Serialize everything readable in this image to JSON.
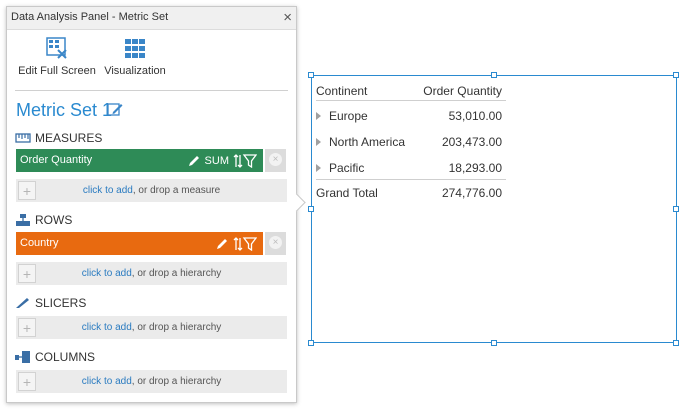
{
  "panel": {
    "title": "Data Analysis Panel - Metric Set",
    "close_glyph": "×",
    "toolbar": {
      "edit_full_screen": "Edit Full Screen",
      "visualization": "Visualization"
    },
    "metric_set_title": "Metric Set 1",
    "sections": {
      "measures": "MEASURES",
      "rows": "ROWS",
      "slicers": "SLICERS",
      "columns": "COLUMNS"
    },
    "measure_chip": {
      "label": "Order Quantity",
      "aggregate": "SUM",
      "color": "#2e8b57"
    },
    "row_chip": {
      "label": "Country",
      "color": "#e86a10"
    },
    "drop_zones": {
      "measure": {
        "link": "click to add",
        "text": ", or drop a measure"
      },
      "rows": {
        "link": "click to add",
        "text": ", or drop a hierarchy"
      },
      "slicers": {
        "link": "click to add",
        "text": ", or drop a hierarchy"
      },
      "columns": {
        "link": "click to add",
        "text": ", or drop a hierarchy"
      }
    },
    "plus_glyph": "+",
    "remove_glyph": "×"
  },
  "table": {
    "columns": [
      "Continent",
      "Order Quantity"
    ],
    "rows": [
      {
        "label": "Europe",
        "value": "53,010.00"
      },
      {
        "label": "North America",
        "value": "203,473.00"
      },
      {
        "label": "Pacific",
        "value": "18,293.00"
      }
    ],
    "grand_total": {
      "label": "Grand Total",
      "value": "274,776.00"
    }
  },
  "colors": {
    "accent": "#2a8ad0",
    "measure": "#2e8b57",
    "row": "#e86a10"
  }
}
